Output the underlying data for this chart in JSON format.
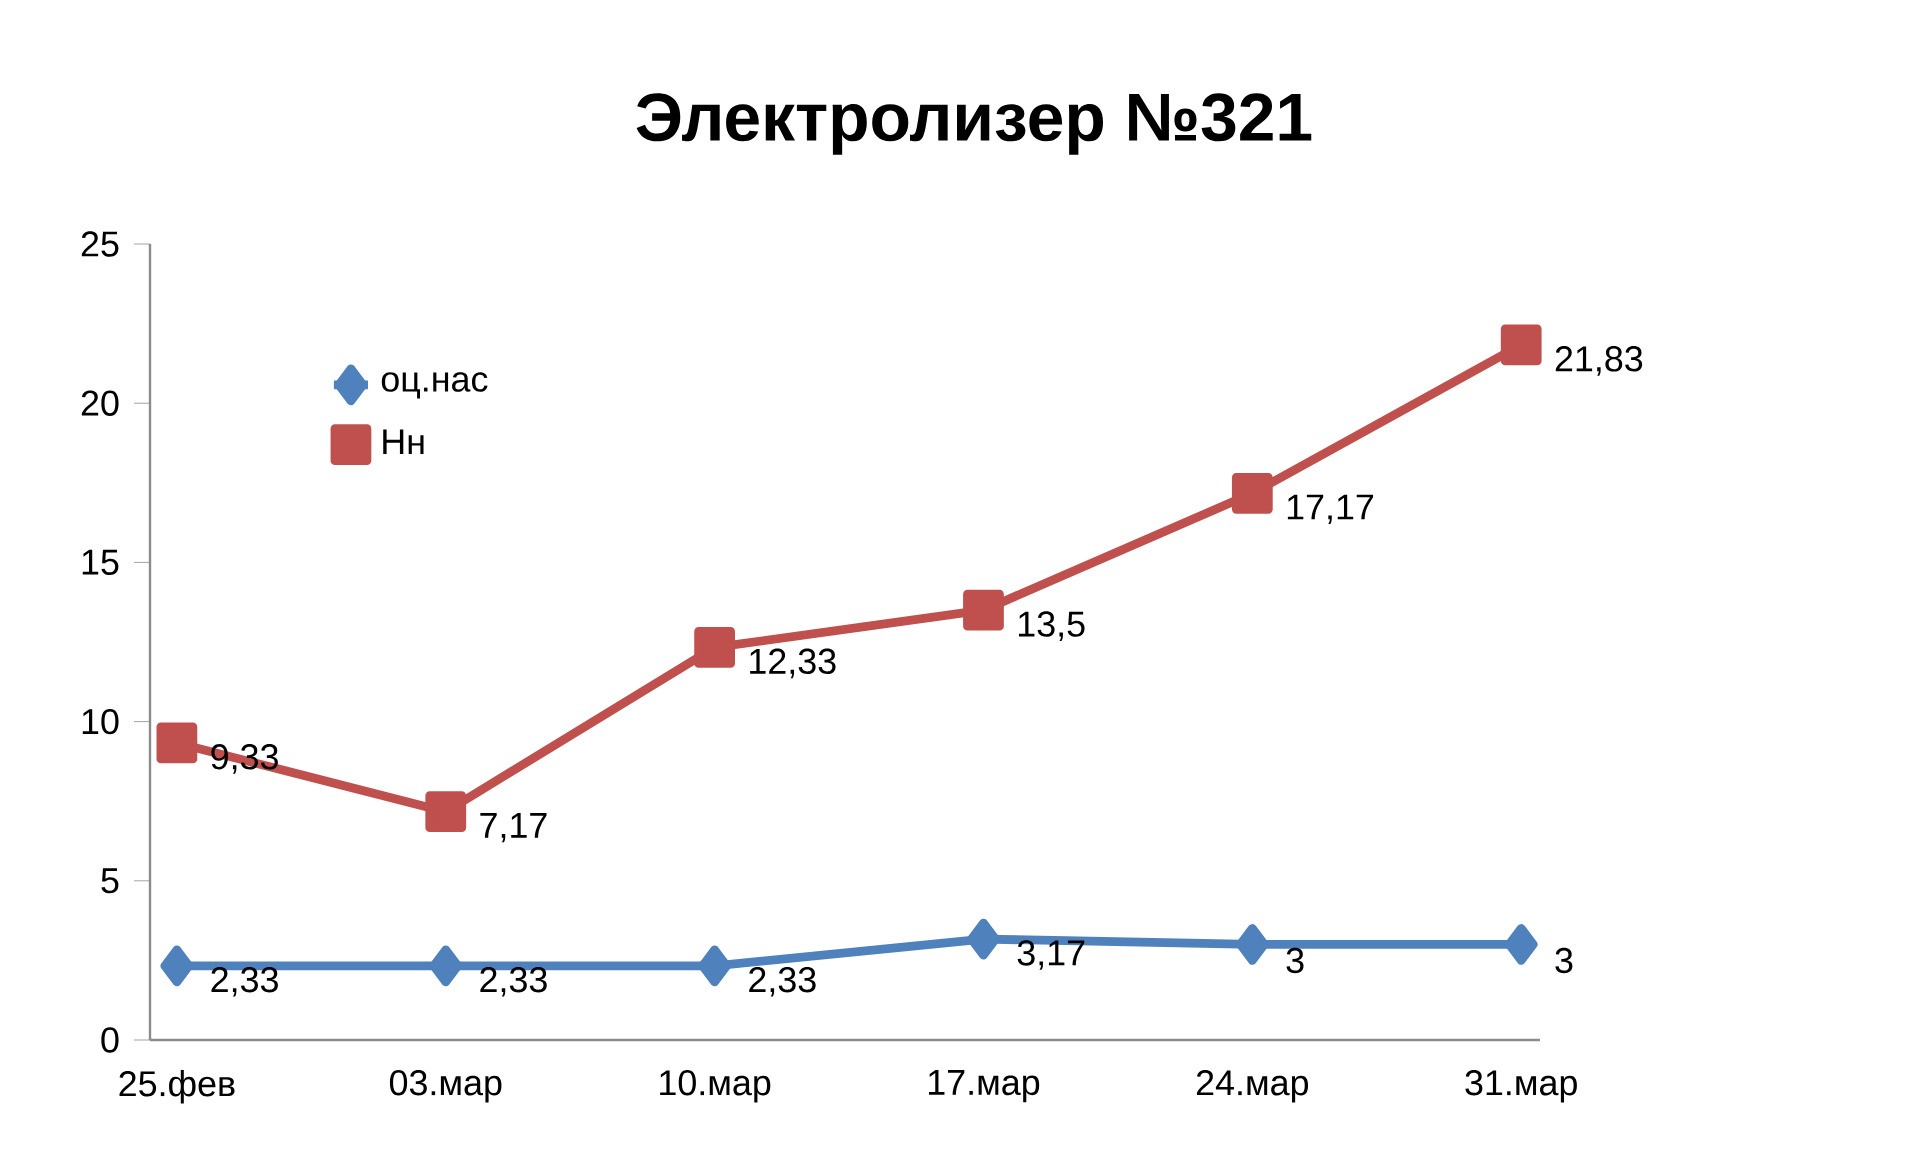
{
  "chart_data": {
    "type": "line",
    "title": "Электролизер №321",
    "categories": [
      "25.фев",
      "03.мар",
      "10.мар",
      "17.мар",
      "24.мар",
      "31.мар"
    ],
    "series": [
      {
        "name": "оц.нас",
        "color": "#4f81bd",
        "marker": "diamond",
        "values": [
          2.33,
          2.33,
          2.33,
          3.17,
          3,
          3
        ],
        "value_labels": [
          "2,33",
          "2,33",
          "2,33",
          "3,17",
          "3",
          "3"
        ]
      },
      {
        "name": "Нн",
        "color": "#c0504d",
        "marker": "square",
        "values": [
          9.33,
          7.17,
          12.33,
          13.5,
          17.17,
          21.83
        ],
        "value_labels": [
          "9,33",
          "7,17",
          "12,33",
          "13,5",
          "17,17",
          "21,83"
        ]
      }
    ],
    "ylim": [
      0,
      25
    ],
    "yticks": [
      0,
      5,
      10,
      15,
      20,
      25
    ],
    "grid": false,
    "legend": "top left",
    "line_style": "solid"
  }
}
